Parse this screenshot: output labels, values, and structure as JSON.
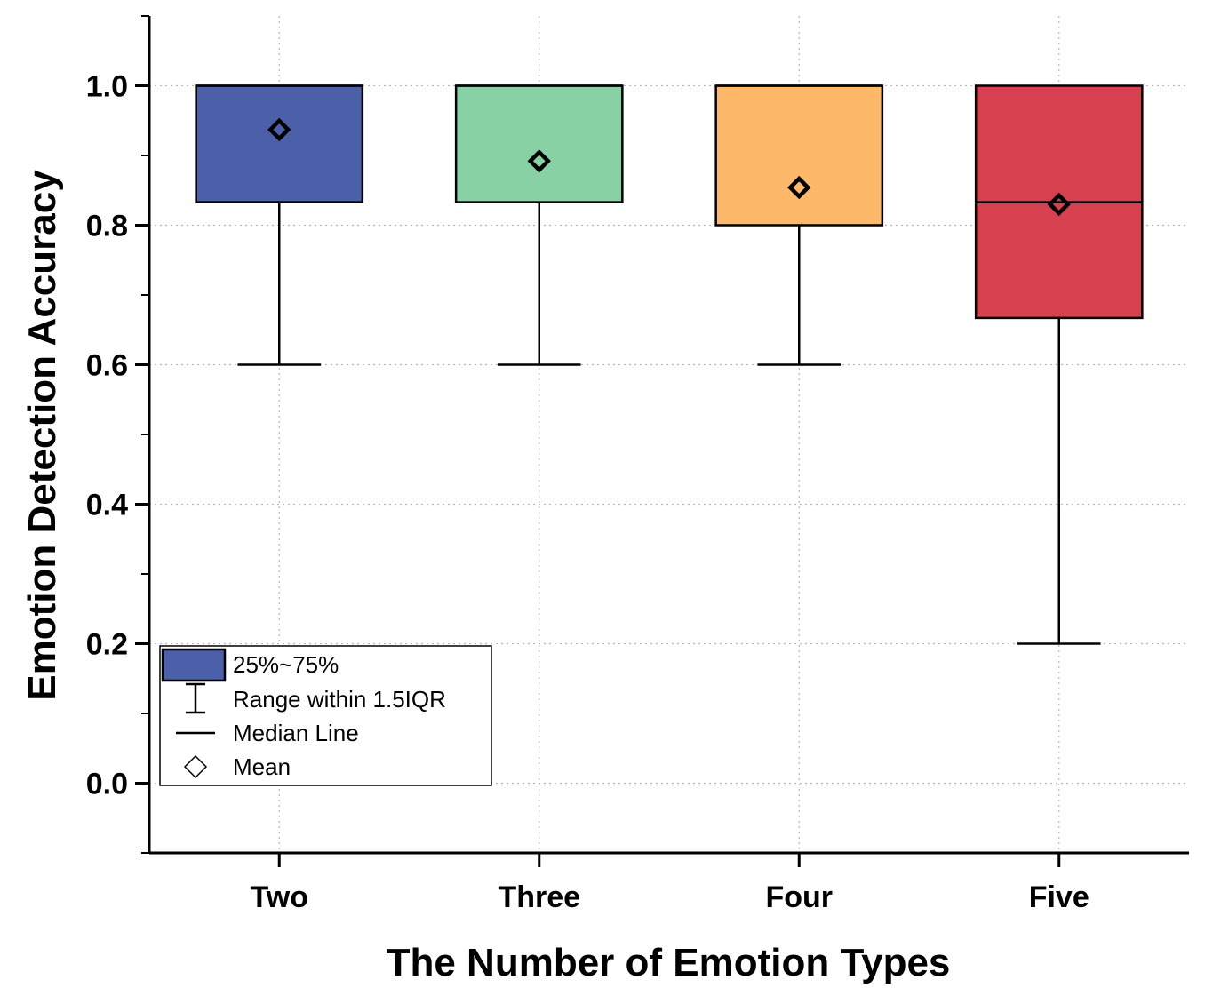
{
  "chart_data": {
    "type": "box",
    "title": "",
    "xlabel": "The Number of Emotion Types",
    "ylabel": "Emotion Detection Accuracy",
    "ylim": [
      -0.1,
      1.1
    ],
    "yticks": [
      0.0,
      0.2,
      0.4,
      0.6,
      0.8,
      1.0
    ],
    "ytick_labels": [
      "0.0",
      "0.2",
      "0.4",
      "0.6",
      "0.8",
      "1.0"
    ],
    "yminor_ticks": [
      -0.1,
      0.1,
      0.3,
      0.5,
      0.7,
      0.9,
      1.1
    ],
    "grid": true,
    "categories": [
      "Two",
      "Three",
      "Four",
      "Five"
    ],
    "boxes": [
      {
        "name": "Two",
        "whisker_low": 0.6,
        "q1": 0.833,
        "median": 1.0,
        "q3": 1.0,
        "whisker_high": 1.0,
        "mean": 0.937,
        "color": "#4c5fa9"
      },
      {
        "name": "Three",
        "whisker_low": 0.6,
        "q1": 0.833,
        "median": 1.0,
        "q3": 1.0,
        "whisker_high": 1.0,
        "mean": 0.892,
        "color": "#88d1a4"
      },
      {
        "name": "Four",
        "whisker_low": 0.6,
        "q1": 0.8,
        "median": 1.0,
        "q3": 1.0,
        "whisker_high": 1.0,
        "mean": 0.854,
        "color": "#fdb86a"
      },
      {
        "name": "Five",
        "whisker_low": 0.2,
        "q1": 0.667,
        "median": 0.833,
        "q3": 1.0,
        "whisker_high": 1.0,
        "mean": 0.83,
        "color": "#d6404f"
      }
    ],
    "legend": {
      "position": "bottom-left",
      "items": [
        {
          "label": "25%~75%",
          "symbol": "box",
          "color": "#4c5fa9"
        },
        {
          "label": "Range within 1.5IQR",
          "symbol": "whisker"
        },
        {
          "label": "Median Line",
          "symbol": "line"
        },
        {
          "label": "Mean",
          "symbol": "diamond"
        }
      ]
    }
  }
}
